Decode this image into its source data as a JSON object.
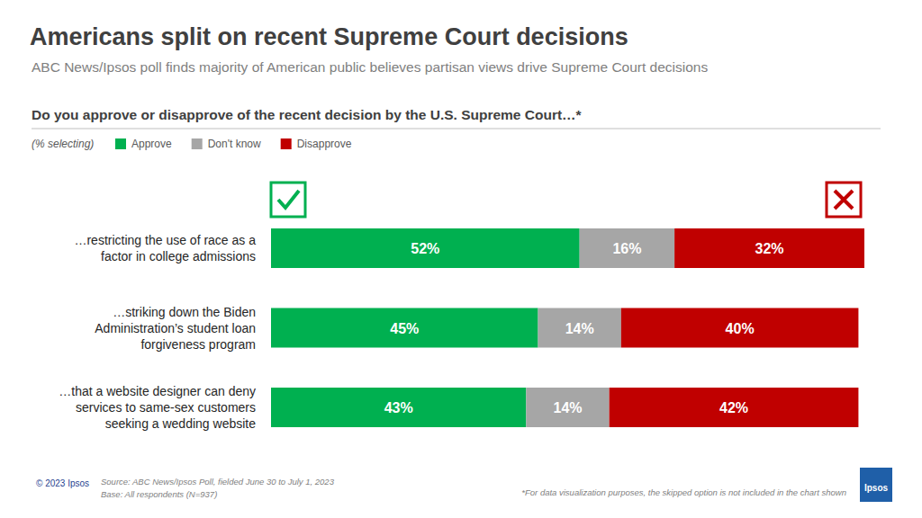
{
  "chart_data": {
    "type": "bar",
    "orientation": "horizontal",
    "stacked": true,
    "data_labels": true,
    "tick_labels": "y",
    "grid": false,
    "title": "Americans split on recent Supreme Court decisions",
    "subtitle": "ABC News/Ipsos poll finds majority of American public believes partisan views drive Supreme Court decisions",
    "question": "Do you approve or disapprove of the recent decision by the U.S. Supreme Court…*",
    "legend_title": "(% selecting)",
    "source": "Source: ABC News/Ipsos Poll, fielded June 30 to July 1, 2023",
    "base": "Base: All respondents (N=937)",
    "copyright": "© 2023 Ipsos",
    "footnote": "*For data visualization purposes, the skipped option is not included in the chart shown",
    "logo": "Ipsos",
    "categories": [
      "…restricting the use of race as a factor in college admissions",
      "…striking down the Biden Administration’s student loan forgiveness program",
      "…that a website designer can deny services to same-sex customers seeking a wedding website"
    ],
    "xlim": [
      0,
      100
    ],
    "series": [
      {
        "name": "Approve",
        "color": "#00b050",
        "values": [
          52,
          45,
          43
        ],
        "value_labels": [
          "52%",
          "45%",
          "43%"
        ]
      },
      {
        "name": "Don't know",
        "color": "#a6a6a6",
        "values": [
          16,
          14,
          14
        ],
        "value_labels": [
          "16%",
          "14%",
          "14%"
        ]
      },
      {
        "name": "Disapprove",
        "color": "#c00000",
        "values": [
          32,
          40,
          42
        ],
        "value_labels": [
          "32%",
          "40%",
          "42%"
        ]
      }
    ]
  }
}
